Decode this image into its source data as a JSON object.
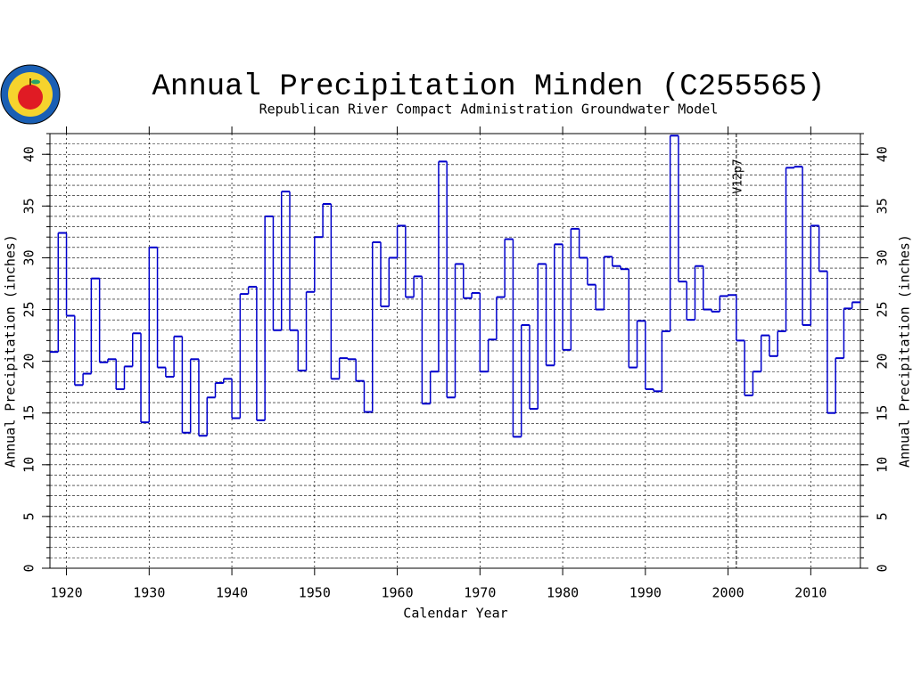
{
  "chart_data": {
    "type": "step",
    "title": "Annual Precipitation Minden (C255565)",
    "subtitle": "Republican River Compact Administration Groundwater Model",
    "x_label": "Calendar Year",
    "y_label": "Annual Precipitation (inches)",
    "y2_label": "Annual Precipitation (inches)",
    "color": "#0000cc",
    "xlim": [
      1918,
      2016
    ],
    "ylim": [
      0,
      42
    ],
    "xticks": [
      1920,
      1930,
      1940,
      1950,
      1960,
      1970,
      1980,
      1990,
      2000,
      2010
    ],
    "yticks": [
      0,
      5,
      10,
      15,
      20,
      25,
      30,
      35,
      40
    ],
    "yminor_ticks": [
      0,
      1,
      2,
      3,
      4,
      5,
      6,
      7,
      8,
      9,
      10,
      11,
      12,
      13,
      14,
      15,
      16,
      17,
      18,
      19,
      20,
      21,
      22,
      23,
      24,
      25,
      26,
      27,
      28,
      29,
      30,
      31,
      32,
      33,
      34,
      35,
      36,
      37,
      38,
      39,
      40,
      41,
      42
    ],
    "grid": true,
    "annotation": {
      "x": 2001,
      "label": "V12p7"
    },
    "x": [
      1918,
      1919,
      1920,
      1921,
      1922,
      1923,
      1924,
      1925,
      1926,
      1927,
      1928,
      1929,
      1930,
      1931,
      1932,
      1933,
      1934,
      1935,
      1936,
      1937,
      1938,
      1939,
      1940,
      1941,
      1942,
      1943,
      1944,
      1945,
      1946,
      1947,
      1948,
      1949,
      1950,
      1951,
      1952,
      1953,
      1954,
      1955,
      1956,
      1957,
      1958,
      1959,
      1960,
      1961,
      1962,
      1963,
      1964,
      1965,
      1966,
      1967,
      1968,
      1969,
      1970,
      1971,
      1972,
      1973,
      1974,
      1975,
      1976,
      1977,
      1978,
      1979,
      1980,
      1981,
      1982,
      1983,
      1984,
      1985,
      1986,
      1987,
      1988,
      1989,
      1990,
      1991,
      1992,
      1993,
      1994,
      1995,
      1996,
      1997,
      1998,
      1999,
      2000,
      2001,
      2002,
      2003,
      2004,
      2005,
      2006,
      2007,
      2008,
      2009,
      2010,
      2011,
      2012,
      2013,
      2014,
      2015
    ],
    "values": [
      20.9,
      32.4,
      24.4,
      17.7,
      18.8,
      28.0,
      19.9,
      20.2,
      17.3,
      19.5,
      22.7,
      14.1,
      31.0,
      19.4,
      18.5,
      22.4,
      13.1,
      20.2,
      12.8,
      16.5,
      17.9,
      18.3,
      14.5,
      26.5,
      27.2,
      14.3,
      34.0,
      23.0,
      36.4,
      23.0,
      19.1,
      26.7,
      32.0,
      35.2,
      18.3,
      20.3,
      20.2,
      18.1,
      15.1,
      31.5,
      25.3,
      30.0,
      33.1,
      26.2,
      28.2,
      15.9,
      19.0,
      39.3,
      16.5,
      29.4,
      26.1,
      26.6,
      19.0,
      22.1,
      26.2,
      31.8,
      12.7,
      23.5,
      15.4,
      29.4,
      19.6,
      31.3,
      21.1,
      32.8,
      30.0,
      27.4,
      25.0,
      30.1,
      29.2,
      28.9,
      19.4,
      23.9,
      17.3,
      17.1,
      22.9,
      41.8,
      27.7,
      24.0,
      29.2,
      25.0,
      24.8,
      26.3,
      26.4,
      22.0,
      16.7,
      19.0,
      22.5,
      20.5,
      22.9,
      38.7,
      38.8,
      23.5,
      33.1,
      28.7,
      15.0,
      20.3,
      25.1,
      25.7
    ]
  }
}
